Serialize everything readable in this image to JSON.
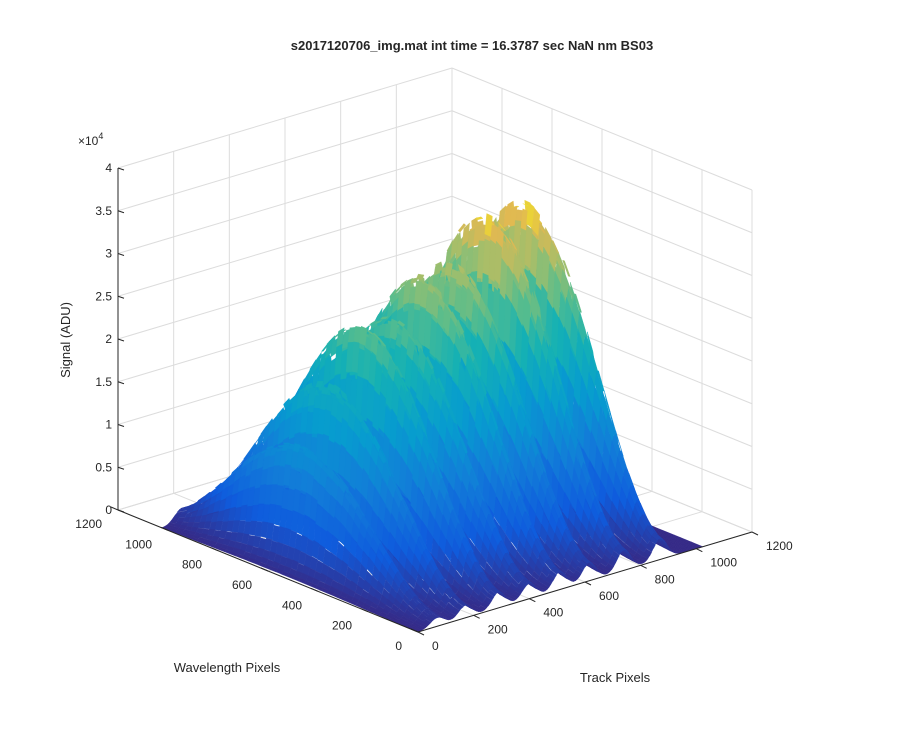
{
  "chart_data": {
    "type": "surface",
    "title": "s2017120706_img.mat int time = 16.3787 sec  NaN nm BS03",
    "xlabel": "Track Pixels",
    "ylabel": "Wavelength Pixels",
    "zlabel": "Signal (ADU)",
    "z_exponent_label": "×10",
    "z_exponent_power": "4",
    "xlim": [
      0,
      1200
    ],
    "ylim": [
      0,
      1200
    ],
    "zlim": [
      0,
      4
    ],
    "z_multiplier": 10000,
    "x_ticks": [
      "0",
      "200",
      "400",
      "600",
      "800",
      "1000",
      "1200"
    ],
    "y_ticks": [
      "0",
      "200",
      "400",
      "600",
      "800",
      "1000",
      "1200"
    ],
    "z_ticks": [
      "0",
      "0.5",
      "1",
      "1.5",
      "2",
      "2.5",
      "3",
      "3.5",
      "4"
    ],
    "grid": true,
    "colormap": "parula",
    "track_x": [
      0,
      1024
    ],
    "wavelength_y": [
      0,
      1024
    ],
    "peaks": [
      {
        "x_center": 70,
        "peak_signal": 1.45
      },
      {
        "x_center": 170,
        "peak_signal": 2.05
      },
      {
        "x_center": 290,
        "peak_signal": 2.6
      },
      {
        "x_center": 400,
        "peak_signal": 2.6
      },
      {
        "x_center": 510,
        "peak_signal": 2.95
      },
      {
        "x_center": 615,
        "peak_signal": 3.0
      },
      {
        "x_center": 740,
        "peak_signal": 3.45
      },
      {
        "x_center": 870,
        "peak_signal": 3.5
      }
    ]
  }
}
